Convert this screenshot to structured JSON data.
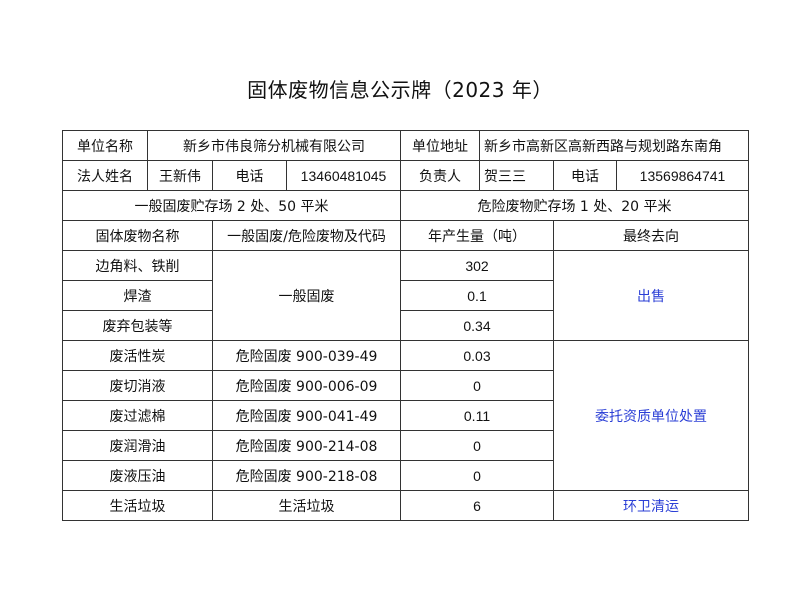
{
  "title": "固体废物信息公示牌（2023 年）",
  "info": {
    "unit_name_label": "单位名称",
    "unit_name": "新乡市伟良筛分机械有限公司",
    "address_label": "单位地址",
    "address": "新乡市高新区高新西路与规划路东南角",
    "legal_person_label": "法人姓名",
    "legal_person": "王新伟",
    "phone_label_1": "电话",
    "phone_1": "13460481045",
    "responsible_label": "负责人",
    "responsible": "贺三三",
    "phone_label_2": "电话",
    "phone_2": "13569864741",
    "general_storage": "一般固废贮存场 2 处、50 平米",
    "hazard_storage": "危险废物贮存场 1 处、20 平米"
  },
  "headers": [
    "固体废物名称",
    "一般固废/危险废物及代码",
    "年产生量（吨）",
    "最终去向"
  ],
  "rows": [
    {
      "name": "边角料、铁削",
      "amount": "302"
    },
    {
      "name": "焊渣",
      "amount": "0.1"
    },
    {
      "name": "废弃包装等",
      "amount": "0.34"
    },
    {
      "name": "废活性炭",
      "type": "危险固废  900-039-49",
      "amount": "0.03"
    },
    {
      "name": "废切消液",
      "type": "危险固废  900-006-09",
      "amount": "0"
    },
    {
      "name": "废过滤棉",
      "type": "危险固废  900-041-49",
      "amount": "0.11"
    },
    {
      "name": "废润滑油",
      "type": "危险固废 900-214-08",
      "amount": "0"
    },
    {
      "name": "废液压油",
      "type": "危险固废  900-218-08",
      "amount": "0"
    },
    {
      "name": "生活垃圾",
      "type": "生活垃圾",
      "amount": "6",
      "destination": "环卫清运"
    }
  ],
  "group_general_type": "一般固废",
  "group_general_destination": "出售",
  "group_hazard_destination": "委托资质单位处置",
  "colors": {
    "destination_text": "#2b3fd6",
    "border": "#333333"
  }
}
